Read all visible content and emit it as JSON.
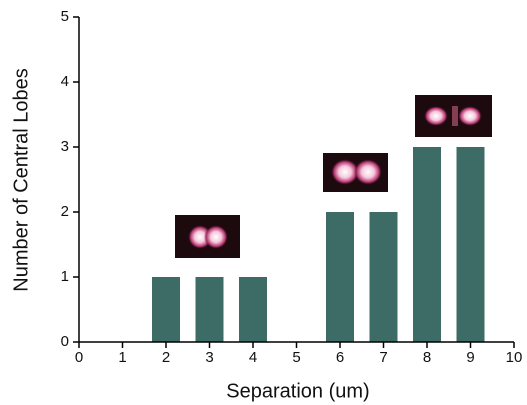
{
  "chart_data": {
    "type": "bar",
    "x": [
      2,
      3,
      4,
      6,
      7,
      8,
      9
    ],
    "values": [
      1,
      1,
      1,
      2,
      2,
      3,
      3
    ],
    "color": "#3d6b66",
    "xlabel": "Separation (um)",
    "ylabel": "Number of Central Lobes",
    "xlim": [
      0,
      10
    ],
    "xticks": [
      0,
      1,
      2,
      3,
      4,
      5,
      6,
      7,
      8,
      9,
      10
    ],
    "ylim": [
      0,
      5
    ],
    "yticks": [
      0,
      1,
      2,
      3,
      4,
      5
    ]
  }
}
